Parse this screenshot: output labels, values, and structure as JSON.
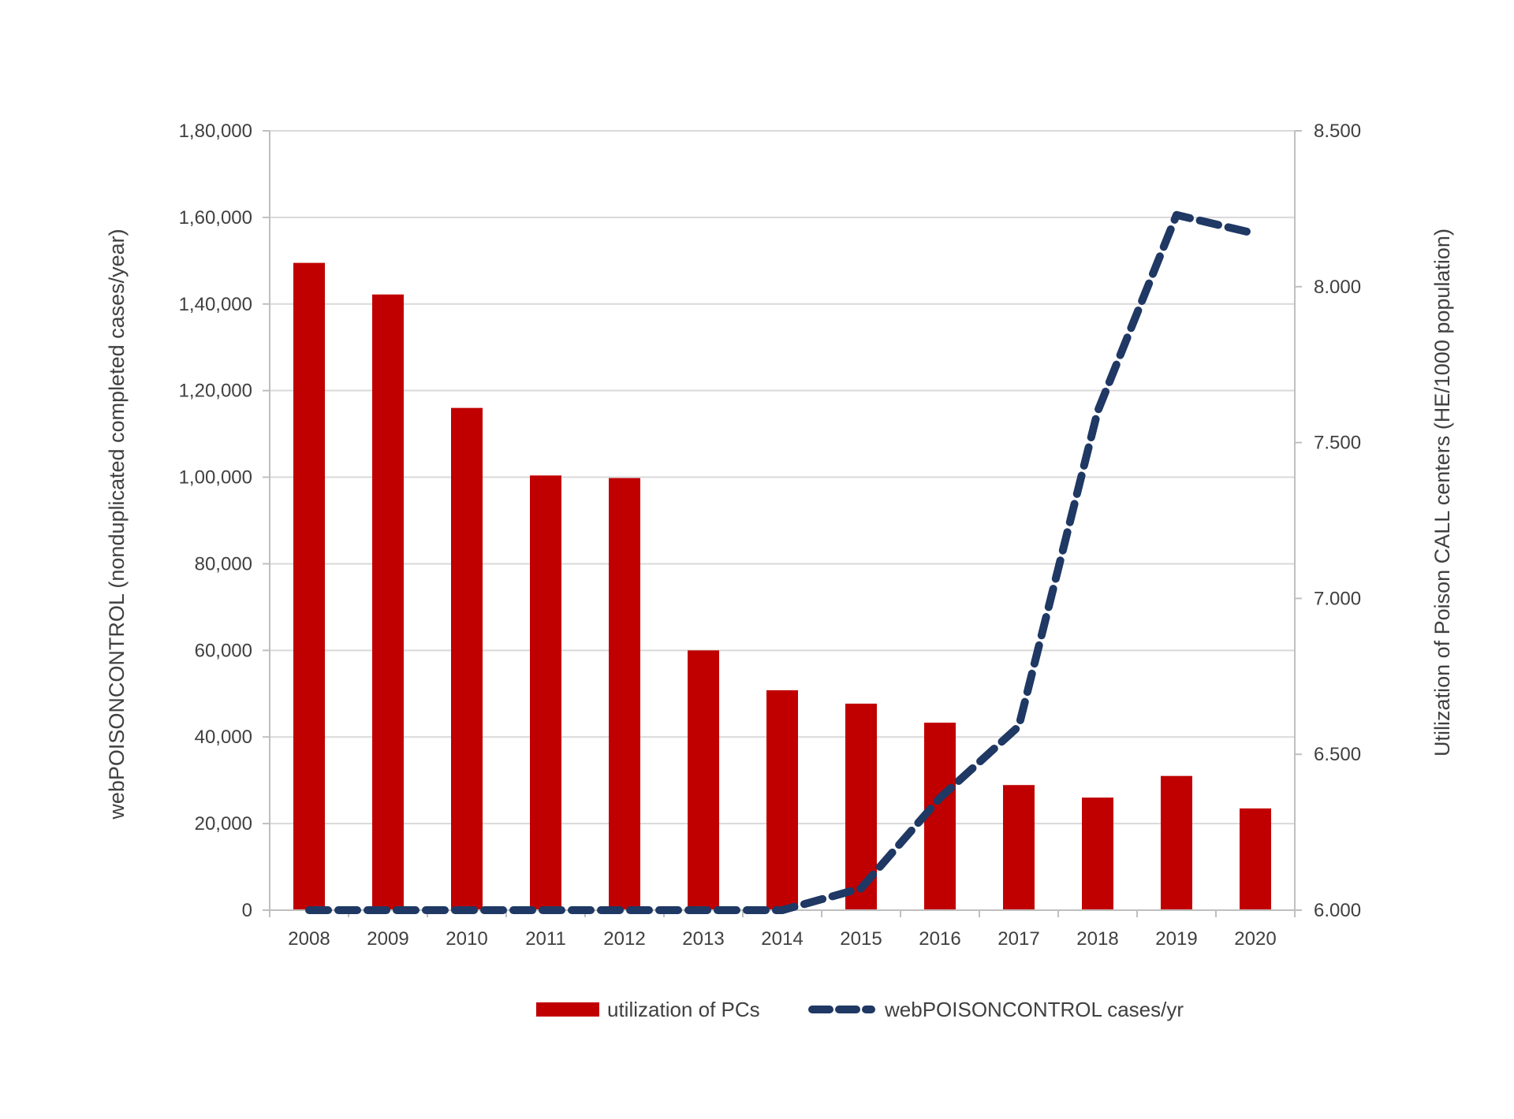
{
  "chart_data": {
    "type": "bar",
    "categories": [
      "2008",
      "2009",
      "2010",
      "2011",
      "2012",
      "2013",
      "2014",
      "2015",
      "2016",
      "2017",
      "2018",
      "2019",
      "2020"
    ],
    "series": [
      {
        "name": "utilization of PCs",
        "type": "bar",
        "axis": "left",
        "color": "#c00000",
        "values": [
          149500,
          142200,
          116000,
          100400,
          99800,
          60000,
          50800,
          47700,
          43300,
          28900,
          26000,
          31000,
          23500
        ]
      },
      {
        "name": "webPOISONCONTROL cases/yr",
        "type": "line",
        "line_style": "dashed",
        "axis": "right",
        "color": "#1f3864",
        "values": [
          6.0,
          6.0,
          6.0,
          6.0,
          6.0,
          6.0,
          6.0,
          6.07,
          6.36,
          6.59,
          7.6,
          8.23,
          8.17
        ]
      }
    ],
    "ylabel_left": "webPOISONCONTROL (nonduplicated completed cases/year)",
    "ylabel_right": "Utilization of Poison CALL centers (HE/1000 population)",
    "ylim_left": [
      0,
      180000
    ],
    "yticks_left": [
      "0",
      "20,000",
      "40,000",
      "60,000",
      "80,000",
      "1,00,000",
      "1,20,000",
      "1,40,000",
      "1,60,000",
      "1,80,000"
    ],
    "ylim_right": [
      6.0,
      8.5
    ],
    "yticks_right": [
      "6.000",
      "6.500",
      "7.000",
      "7.500",
      "8.000",
      "8.500"
    ],
    "grid": true,
    "legend_position": "bottom"
  }
}
